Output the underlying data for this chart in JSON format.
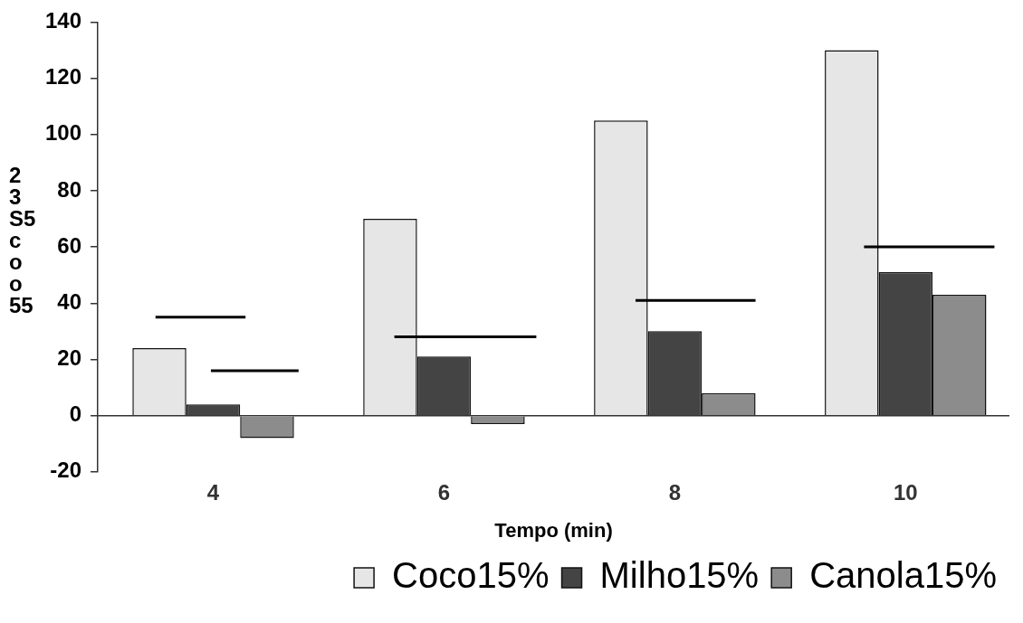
{
  "chart_data": {
    "type": "bar",
    "xlabel": "Tempo (min)",
    "ylabel": "2\n3\nS5\nc\no\no\n55",
    "x": [
      4,
      6,
      8,
      10
    ],
    "xlim": [
      3,
      10.9
    ],
    "xticks": [
      4,
      6,
      8,
      10
    ],
    "ylim": [
      -20,
      140
    ],
    "yticks": [
      -20,
      0,
      20,
      40,
      60,
      80,
      100,
      120,
      140
    ],
    "grid": false,
    "legend": "bottom",
    "ref_lines": [
      {
        "axis": "y",
        "value": 0,
        "color": "#333333"
      }
    ],
    "series": [
      {
        "name": "Coco15%",
        "color": "#e6e6e6",
        "values": [
          24,
          70,
          105,
          130
        ]
      },
      {
        "name": "Milho15%",
        "color": "#444444",
        "values": [
          4,
          21,
          30,
          51
        ]
      },
      {
        "name": "Canola15%",
        "color": "#8c8c8c",
        "values": [
          -8,
          -3,
          8,
          43
        ]
      },
      {
        "type": "line",
        "color": "#000000",
        "x": [
          3.5,
          4.28
        ],
        "values": [
          35,
          35
        ]
      },
      {
        "type": "line",
        "color": "#000000",
        "x": [
          3.98,
          4.74
        ],
        "values": [
          16,
          16
        ]
      },
      {
        "type": "line",
        "color": "#000000",
        "x": [
          5.57,
          6.8
        ],
        "values": [
          28,
          28
        ]
      },
      {
        "type": "line",
        "color": "#000000",
        "x": [
          7.66,
          8.7
        ],
        "values": [
          41,
          41
        ]
      },
      {
        "type": "line",
        "color": "#000000",
        "x": [
          9.64,
          10.77
        ],
        "values": [
          60,
          60
        ]
      }
    ]
  }
}
